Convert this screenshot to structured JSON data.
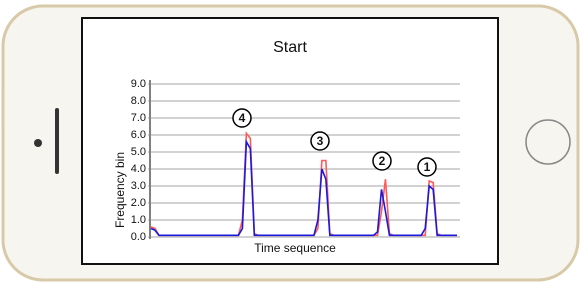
{
  "chart_data": {
    "type": "line",
    "title": "Start",
    "x_label": "Time sequence",
    "y_label": "Frequency bin",
    "categories": [
      null,
      null,
      null,
      null,
      null,
      null,
      null,
      null,
      null,
      null,
      null,
      null,
      null,
      null,
      null,
      null,
      null,
      null,
      null,
      null,
      null,
      null,
      null,
      null,
      null,
      null,
      null,
      null,
      null,
      null,
      null,
      null,
      null,
      null,
      null,
      null,
      null,
      null,
      null,
      null,
      null,
      null,
      null,
      null,
      null,
      null,
      null,
      null,
      null,
      null,
      null,
      null,
      null,
      null,
      null,
      null,
      null,
      null,
      null,
      null,
      null,
      null,
      null,
      null,
      null,
      null,
      null,
      null,
      null,
      null,
      null,
      null,
      null,
      null,
      null,
      null,
      null,
      null
    ],
    "series": [
      {
        "color": "#ff5a5a",
        "values": [
          0.6,
          0.5,
          0.1,
          0.1,
          0.1,
          0.1,
          0.1,
          0.1,
          0.1,
          0.1,
          0.1,
          0.1,
          0.1,
          0.1,
          0.1,
          0.1,
          0.1,
          0.1,
          0.1,
          0.1,
          0.1,
          0.1,
          0.1,
          1.0,
          6.1,
          5.8,
          0.2,
          0.1,
          0.1,
          0.1,
          0.1,
          0.1,
          0.1,
          0.1,
          0.1,
          0.1,
          0.1,
          0.1,
          0.1,
          0.1,
          0.1,
          0.1,
          0.5,
          4.5,
          4.5,
          0.2,
          0.1,
          0.1,
          0.1,
          0.1,
          0.1,
          0.1,
          0.1,
          0.1,
          0.1,
          0.1,
          0.1,
          0.1,
          1.5,
          3.4,
          0.2,
          0.1,
          0.1,
          0.1,
          0.1,
          0.1,
          0.1,
          0.1,
          0.1,
          0.1,
          3.3,
          3.2,
          0.2,
          0.1,
          0.1,
          0.1,
          0.1,
          0.1
        ]
      },
      {
        "color": "#1a1adc",
        "values": [
          0.5,
          0.4,
          0.1,
          0.1,
          0.1,
          0.1,
          0.1,
          0.1,
          0.1,
          0.1,
          0.1,
          0.1,
          0.1,
          0.1,
          0.1,
          0.1,
          0.1,
          0.1,
          0.1,
          0.1,
          0.1,
          0.1,
          0.1,
          0.5,
          5.6,
          5.2,
          0.1,
          0.1,
          0.1,
          0.1,
          0.1,
          0.1,
          0.1,
          0.1,
          0.1,
          0.1,
          0.1,
          0.1,
          0.1,
          0.1,
          0.1,
          0.1,
          1.0,
          4.0,
          3.4,
          0.1,
          0.1,
          0.1,
          0.1,
          0.1,
          0.1,
          0.1,
          0.1,
          0.1,
          0.1,
          0.1,
          0.1,
          0.3,
          2.8,
          1.5,
          0.1,
          0.1,
          0.1,
          0.1,
          0.1,
          0.1,
          0.1,
          0.1,
          0.1,
          0.5,
          3.0,
          2.8,
          0.1,
          0.1,
          0.1,
          0.1,
          0.1,
          0.1
        ]
      }
    ],
    "ylim": [
      0,
      9
    ],
    "yticks": [
      {
        "value": 0,
        "label": "0.0"
      },
      {
        "value": 1,
        "label": "1.0"
      },
      {
        "value": 2,
        "label": "2.0"
      },
      {
        "value": 3,
        "label": "3.0"
      },
      {
        "value": 4,
        "label": "4.0"
      },
      {
        "value": 5,
        "label": "5.0"
      },
      {
        "value": 6,
        "label": "6.0"
      },
      {
        "value": 7,
        "label": "7.0"
      },
      {
        "value": 8,
        "label": "8.0"
      },
      {
        "value": 9,
        "label": "9.0"
      }
    ],
    "grid": true,
    "annotations": [
      "4",
      "3",
      "2",
      "1"
    ]
  }
}
